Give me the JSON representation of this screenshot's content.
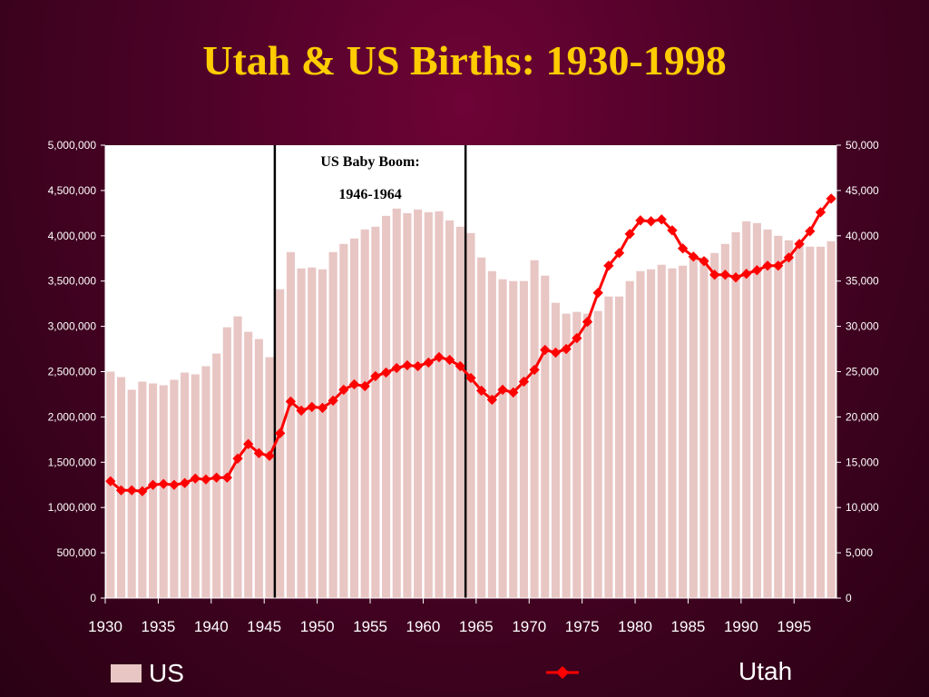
{
  "title": "Utah & US Births: 1930-1998",
  "colors": {
    "background": "#4a0226",
    "title": "#ffcc00",
    "plot_area": "#ffffff",
    "us_bar": "#e8c6c4",
    "utah_line": "#ff0000",
    "axis_text": "#ffffff",
    "boom_lines": "#000000"
  },
  "chart_data": {
    "type": "bar",
    "x_start": 1930,
    "x_end": 1998,
    "x_tick_labels": [
      "1930",
      "1935",
      "1940",
      "1945",
      "1950",
      "1955",
      "1960",
      "1965",
      "1970",
      "1975",
      "1980",
      "1985",
      "1990",
      "1995"
    ],
    "left_axis": {
      "min": 0,
      "max": 5000000,
      "tick_labels": [
        "0",
        "500,000",
        "1,000,000",
        "1,500,000",
        "2,000,000",
        "2,500,000",
        "3,000,000",
        "3,500,000",
        "4,000,000",
        "4,500,000",
        "5,000,000"
      ]
    },
    "right_axis": {
      "min": 0,
      "max": 50000,
      "tick_labels": [
        "0",
        "5,000",
        "10,000",
        "15,000",
        "20,000",
        "25,000",
        "30,000",
        "35,000",
        "40,000",
        "45,000",
        "50,000"
      ]
    },
    "series": [
      {
        "name": "US",
        "type": "bar",
        "axis": "left",
        "values": [
          2500000,
          2440000,
          2300000,
          2390000,
          2370000,
          2350000,
          2410000,
          2490000,
          2470000,
          2560000,
          2700000,
          2990000,
          3110000,
          2940000,
          2860000,
          2660000,
          3410000,
          3820000,
          3640000,
          3650000,
          3630000,
          3820000,
          3910000,
          3970000,
          4070000,
          4100000,
          4220000,
          4300000,
          4250000,
          4290000,
          4260000,
          4270000,
          4170000,
          4100000,
          4030000,
          3760000,
          3610000,
          3520000,
          3500000,
          3500000,
          3730000,
          3560000,
          3260000,
          3140000,
          3160000,
          3140000,
          3170000,
          3330000,
          3330000,
          3500000,
          3610000,
          3630000,
          3680000,
          3640000,
          3670000,
          3760000,
          3760000,
          3810000,
          3910000,
          4040000,
          4160000,
          4140000,
          4070000,
          4000000,
          3950000,
          3900000,
          3880000,
          3880000,
          3940000
        ]
      },
      {
        "name": "Utah",
        "type": "line",
        "axis": "right",
        "values": [
          12900,
          11900,
          11900,
          11800,
          12500,
          12600,
          12500,
          12700,
          13200,
          13100,
          13300,
          13300,
          15400,
          17000,
          16000,
          15700,
          18200,
          21700,
          20700,
          21100,
          21000,
          21800,
          23000,
          23600,
          23400,
          24500,
          24900,
          25400,
          25700,
          25600,
          26000,
          26600,
          26300,
          25600,
          24300,
          22900,
          21900,
          23000,
          22700,
          23900,
          25200,
          27400,
          27100,
          27500,
          28700,
          30500,
          33700,
          36700,
          38100,
          40200,
          41700,
          41600,
          41800,
          40600,
          38600,
          37700,
          37200,
          35700,
          35700,
          35400,
          35800,
          36200,
          36700,
          36700,
          37600,
          39100,
          40500,
          42600,
          44100
        ]
      }
    ],
    "annotation": {
      "lines": [
        "US Baby Boom:",
        "1946-1964"
      ],
      "start_year": 1946,
      "end_year": 1964
    },
    "legend": {
      "placement": "bottom",
      "items": [
        "US",
        "Utah"
      ]
    }
  }
}
